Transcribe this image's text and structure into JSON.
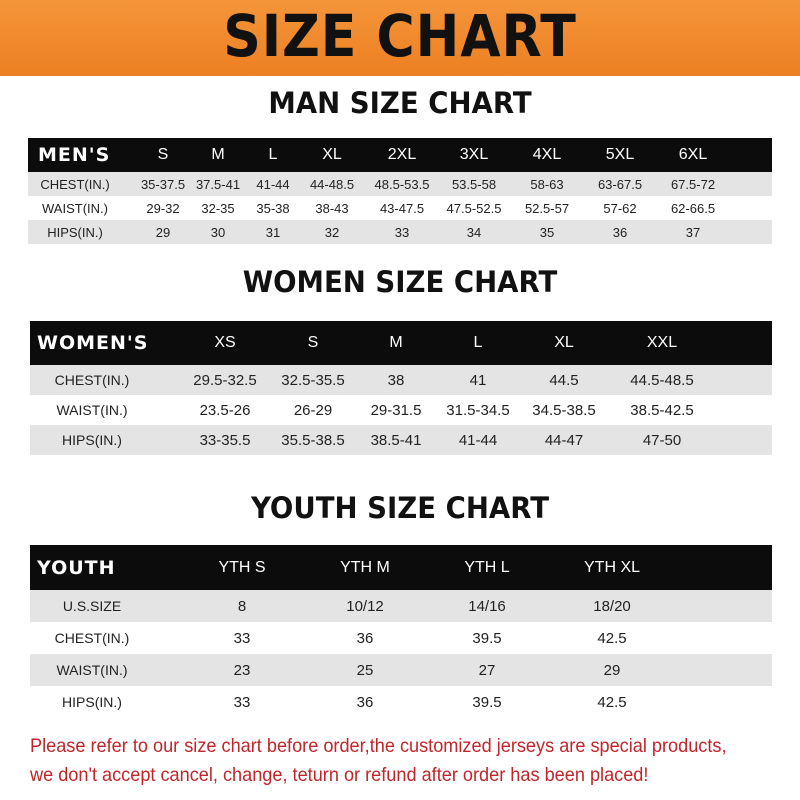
{
  "banner": {
    "title": "SIZE CHART",
    "color": "#ef8a2c"
  },
  "men": {
    "title": "MAN SIZE CHART",
    "header": [
      "MEN'S",
      "S",
      "M",
      "L",
      "XL",
      "2XL",
      "3XL",
      "4XL",
      "5XL",
      "6XL"
    ],
    "rows": [
      [
        "CHEST(IN.)",
        "35-37.5",
        "37.5-41",
        "41-44",
        "44-48.5",
        "48.5-53.5",
        "53.5-58",
        "58-63",
        "63-67.5",
        "67.5-72"
      ],
      [
        "WAIST(IN.)",
        "29-32",
        "32-35",
        "35-38",
        "38-43",
        "43-47.5",
        "47.5-52.5",
        "52.5-57",
        "57-62",
        "62-66.5"
      ],
      [
        "HIPS(IN.)",
        "29",
        "30",
        "31",
        "32",
        "33",
        "34",
        "35",
        "36",
        "37"
      ]
    ]
  },
  "women": {
    "title": "WOMEN SIZE CHART",
    "header": [
      "WOMEN'S",
      "XS",
      "S",
      "M",
      "L",
      "XL",
      "XXL"
    ],
    "rows": [
      [
        "CHEST(IN.)",
        "29.5-32.5",
        "32.5-35.5",
        "38",
        "41",
        "44.5",
        "44.5-48.5"
      ],
      [
        "WAIST(IN.)",
        "23.5-26",
        "26-29",
        "29-31.5",
        "31.5-34.5",
        "34.5-38.5",
        "38.5-42.5"
      ],
      [
        "HIPS(IN.)",
        "33-35.5",
        "35.5-38.5",
        "38.5-41",
        "41-44",
        "44-47",
        "47-50"
      ]
    ]
  },
  "youth": {
    "title": "YOUTH SIZE CHART",
    "header": [
      "YOUTH",
      "YTH S",
      "YTH M",
      "YTH L",
      "YTH XL"
    ],
    "rows": [
      [
        "U.S.SIZE",
        "8",
        "10/12",
        "14/16",
        "18/20"
      ],
      [
        "CHEST(IN.)",
        "33",
        "36",
        "39.5",
        "42.5"
      ],
      [
        "WAIST(IN.)",
        "23",
        "25",
        "27",
        "29"
      ],
      [
        "HIPS(IN.)",
        "33",
        "36",
        "39.5",
        "42.5"
      ]
    ]
  },
  "notice": {
    "line1": "Please refer to our size chart before order,the customized jerseys are special products,",
    "line2": "we don't accept cancel, change, teturn or refund after order has been placed!",
    "color": "#c0262a"
  }
}
